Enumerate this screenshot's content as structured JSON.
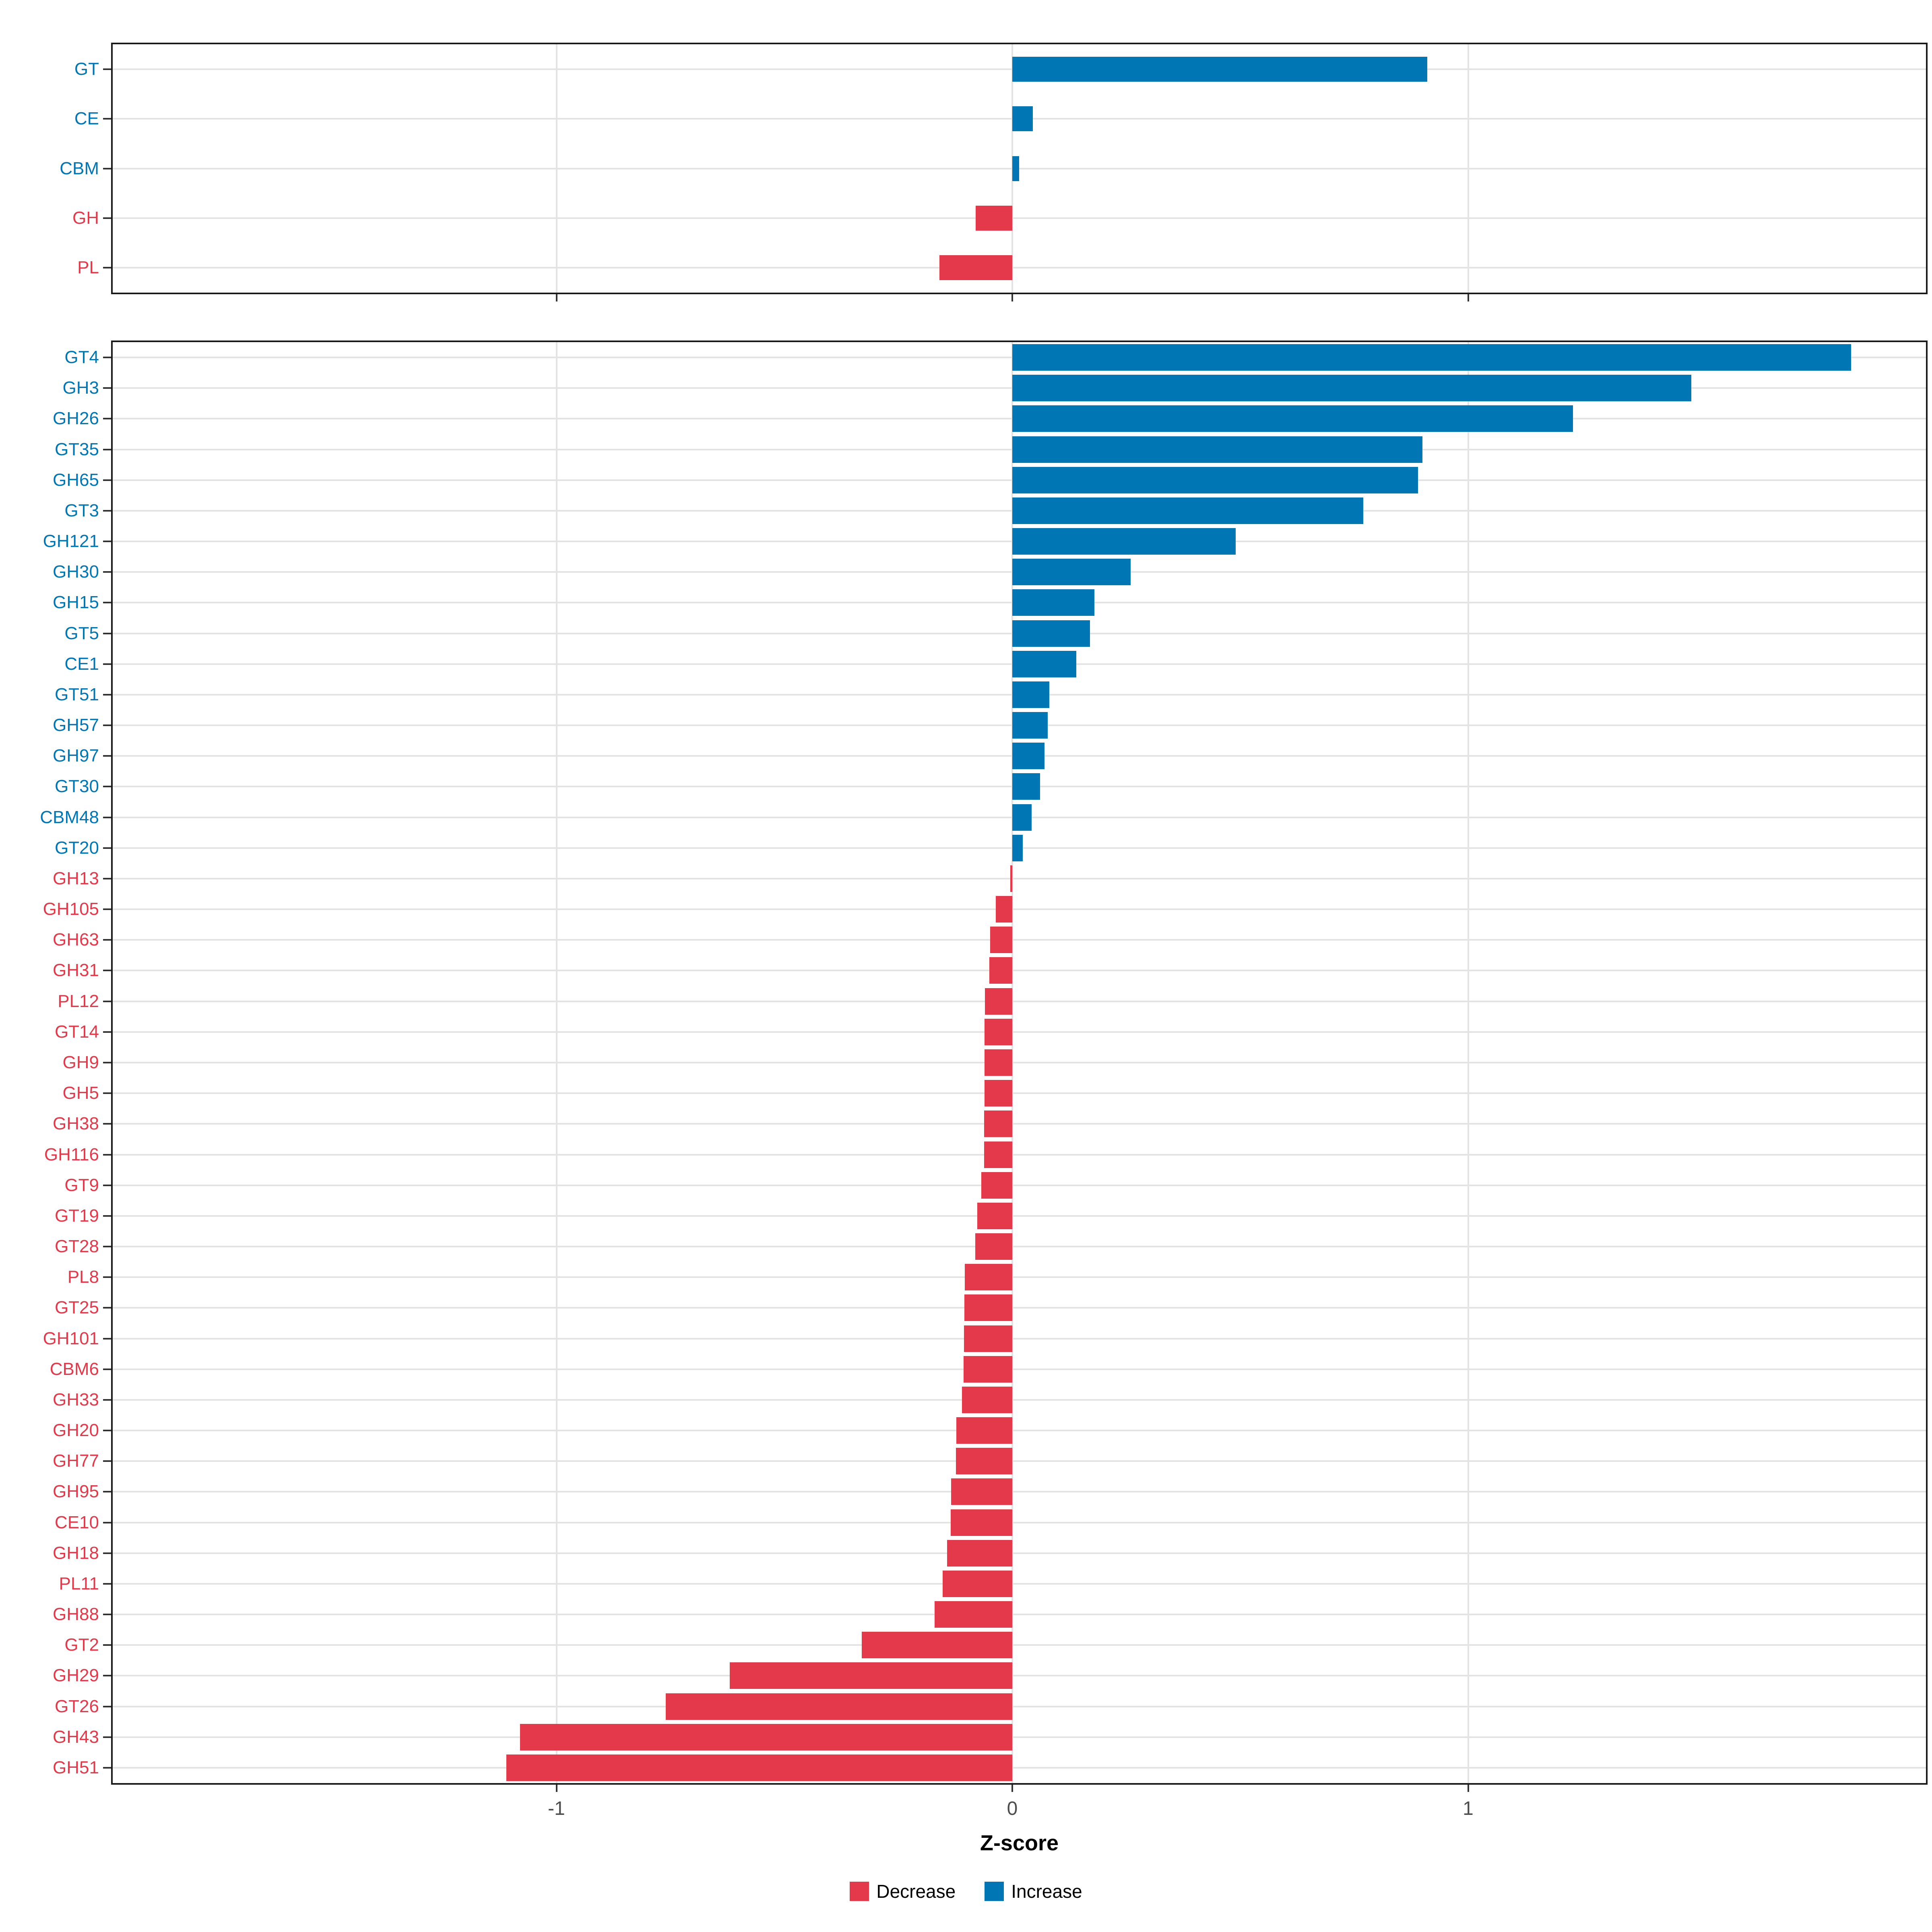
{
  "chart_data": [
    {
      "type": "bar",
      "orientation": "horizontal",
      "panel": "enzyme-families",
      "categories": [
        "GT",
        "CE",
        "CBM",
        "GH",
        "PL"
      ],
      "values": [
        0.91,
        0.045,
        0.015,
        -0.08,
        -0.16
      ],
      "xlabel": "Z-score",
      "xlim": [
        -1.97,
        2.0
      ],
      "grid": true,
      "note": "bar color and category label color: blue if value > 0 (Increase), red if value < 0 (Decrease)"
    },
    {
      "type": "bar",
      "orientation": "horizontal",
      "panel": "enzyme-subfamilies",
      "categories": [
        "GT4",
        "GH3",
        "GH26",
        "GT35",
        "GH65",
        "GT3",
        "GH121",
        "GH30",
        "GH15",
        "GT5",
        "CE1",
        "GT51",
        "GH57",
        "GH97",
        "GT30",
        "CBM48",
        "GT20",
        "GH13",
        "GH105",
        "GH63",
        "GH31",
        "PL12",
        "GT14",
        "GH9",
        "GH5",
        "GH38",
        "GH116",
        "GT9",
        "GT19",
        "GT28",
        "PL8",
        "GT25",
        "GH101",
        "CBM6",
        "GH33",
        "GH20",
        "GH77",
        "GH95",
        "CE10",
        "GH18",
        "PL11",
        "GH88",
        "GT2",
        "GH29",
        "GT26",
        "GH43",
        "GH51"
      ],
      "values": [
        1.84,
        1.49,
        1.23,
        0.9,
        0.89,
        0.77,
        0.49,
        0.26,
        0.18,
        0.17,
        0.14,
        0.081,
        0.078,
        0.071,
        0.061,
        0.042,
        0.023,
        -0.004,
        -0.036,
        -0.049,
        -0.05,
        -0.06,
        -0.061,
        -0.061,
        -0.061,
        -0.062,
        -0.062,
        -0.068,
        -0.077,
        -0.081,
        -0.104,
        -0.105,
        -0.106,
        -0.107,
        -0.11,
        -0.123,
        -0.124,
        -0.134,
        -0.135,
        -0.143,
        -0.153,
        -0.17,
        -0.33,
        -0.62,
        -0.76,
        -1.08,
        -1.11
      ],
      "xlabel": "Z-score",
      "xlim": [
        -1.97,
        2.0
      ],
      "grid": true
    }
  ],
  "axis": {
    "xlabel": "Z-score",
    "ticks": [
      "-1",
      "0",
      "1"
    ],
    "tick_values": [
      -1,
      0,
      1
    ]
  },
  "legend": {
    "position": "bottom-center",
    "items": [
      {
        "label": "Decrease",
        "color": "#E3394A"
      },
      {
        "label": "Increase",
        "color": "#0077B4"
      }
    ]
  },
  "colors": {
    "increase": "#0077B4",
    "decrease": "#E3394A",
    "gridline": "#E3E3E3",
    "panel_border": "#1A1A1A",
    "tick_mark": "#333333",
    "tick_label": "#4D4D4D"
  }
}
